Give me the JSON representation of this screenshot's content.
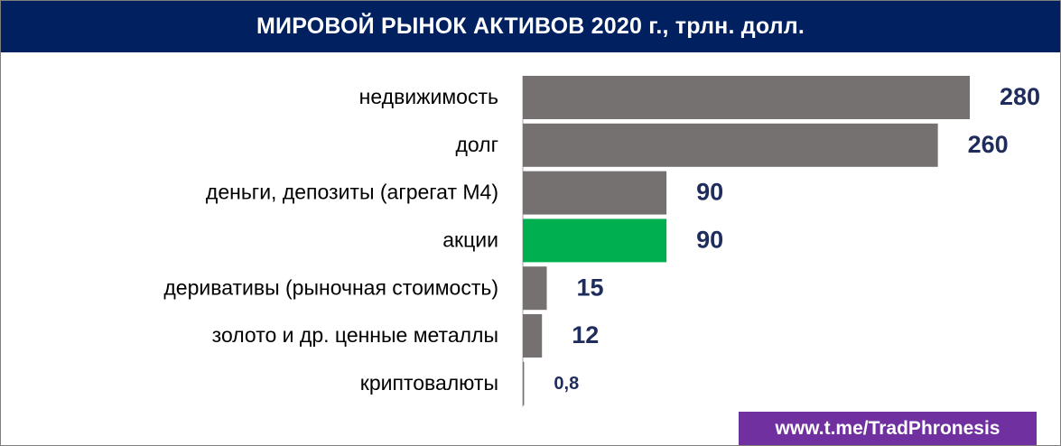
{
  "header": {
    "title": "МИРОВОЙ РЫНОК АКТИВОВ 2020 г., трлн. долл."
  },
  "footer": {
    "link_text": "www.t.me/TradPhronesis",
    "bg_color": "#7030a0"
  },
  "colors": {
    "header_bg": "#002060",
    "bar_default": "#767171",
    "bar_highlight": "#00b050",
    "value_label": "#1f2d5c"
  },
  "chart_data": {
    "type": "bar",
    "orientation": "horizontal",
    "title": "МИРОВОЙ РЫНОК АКТИВОВ 2020 г., трлн. долл.",
    "categories": [
      "недвижимость",
      "долг ",
      "деньги, депозиты (агрегат М4)",
      "акции",
      "деривативы (рыночная стоимость)",
      "золото и др. ценные металлы",
      "криптовалюты"
    ],
    "values": [
      280,
      260,
      90,
      90,
      15,
      12,
      0.8
    ],
    "value_labels": [
      "280",
      "260",
      "90",
      "90",
      "15",
      "12",
      "0,8"
    ],
    "highlight_index": 3,
    "xlim": [
      0,
      280
    ],
    "grid": false,
    "legend": "none"
  }
}
